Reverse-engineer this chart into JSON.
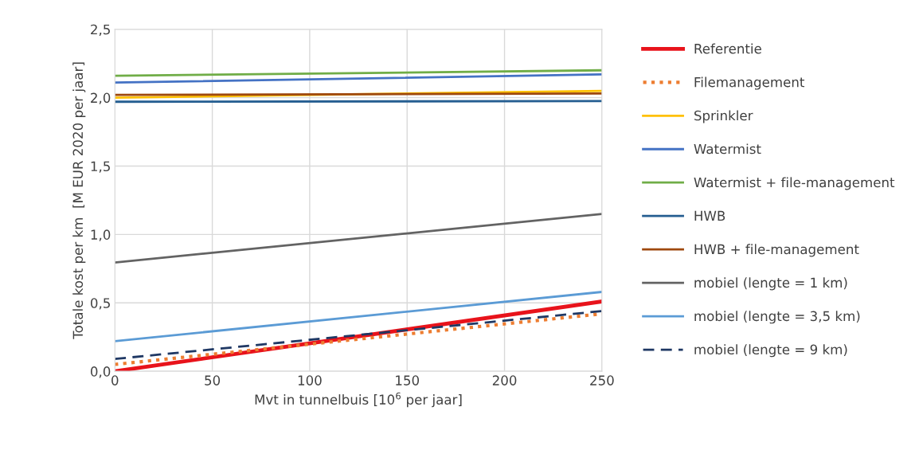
{
  "chart_data": {
    "type": "line",
    "xlabel": "Mvt in tunnelbuis [10$^{6}$ per jaar]",
    "ylabel": "Totale kost per km  [M EUR 2020 per jaar]",
    "x": [
      0,
      250
    ],
    "xlim": [
      0,
      250
    ],
    "xticks": [
      0,
      50,
      100,
      150,
      200,
      250
    ],
    "ylim": [
      0,
      2.5
    ],
    "yticks": [
      {
        "value": 0,
        "label": "0,0"
      },
      {
        "value": 0.5,
        "label": "0,5"
      },
      {
        "value": 1,
        "label": "1,0"
      },
      {
        "value": 1.5,
        "label": "1,5"
      },
      {
        "value": 2,
        "label": "2,0"
      },
      {
        "value": 2.5,
        "label": "2,5"
      }
    ],
    "grid": true,
    "legend": "right",
    "marker": "none",
    "series": [
      {
        "name": "Referentie",
        "color": "#e8131b",
        "values": [
          0.0,
          0.51
        ],
        "line_style": "solid"
      },
      {
        "name": "Filemanagement",
        "color": "#ed7d31",
        "values": [
          0.05,
          0.42
        ],
        "line_style": "dotted"
      },
      {
        "name": "Sprinkler",
        "color": "#ffc000",
        "values": [
          2.0,
          2.05
        ],
        "line_style": "solid"
      },
      {
        "name": "Watermist",
        "color": "#4472c4",
        "values": [
          2.11,
          2.17
        ],
        "line_style": "solid"
      },
      {
        "name": "Watermist + file-management",
        "color": "#70ad47",
        "values": [
          2.16,
          2.2
        ],
        "line_style": "solid"
      },
      {
        "name": "HWB",
        "color": "#255e91",
        "values": [
          1.97,
          1.975
        ],
        "line_style": "solid"
      },
      {
        "name": "HWB + file-management",
        "color": "#9e480e",
        "values": [
          2.02,
          2.03
        ],
        "line_style": "solid"
      },
      {
        "name": "mobiel (lengte = 1 km)",
        "color": "#636363",
        "values": [
          0.795,
          1.15
        ],
        "line_style": "solid"
      },
      {
        "name": "mobiel (lengte = 3,5 km)",
        "color": "#5b9bd5",
        "values": [
          0.22,
          0.58
        ],
        "line_style": "solid"
      },
      {
        "name": "mobiel (lengte = 9 km)",
        "color": "#1f3864",
        "values": [
          0.09,
          0.44
        ],
        "line_style": "dashed"
      }
    ]
  }
}
